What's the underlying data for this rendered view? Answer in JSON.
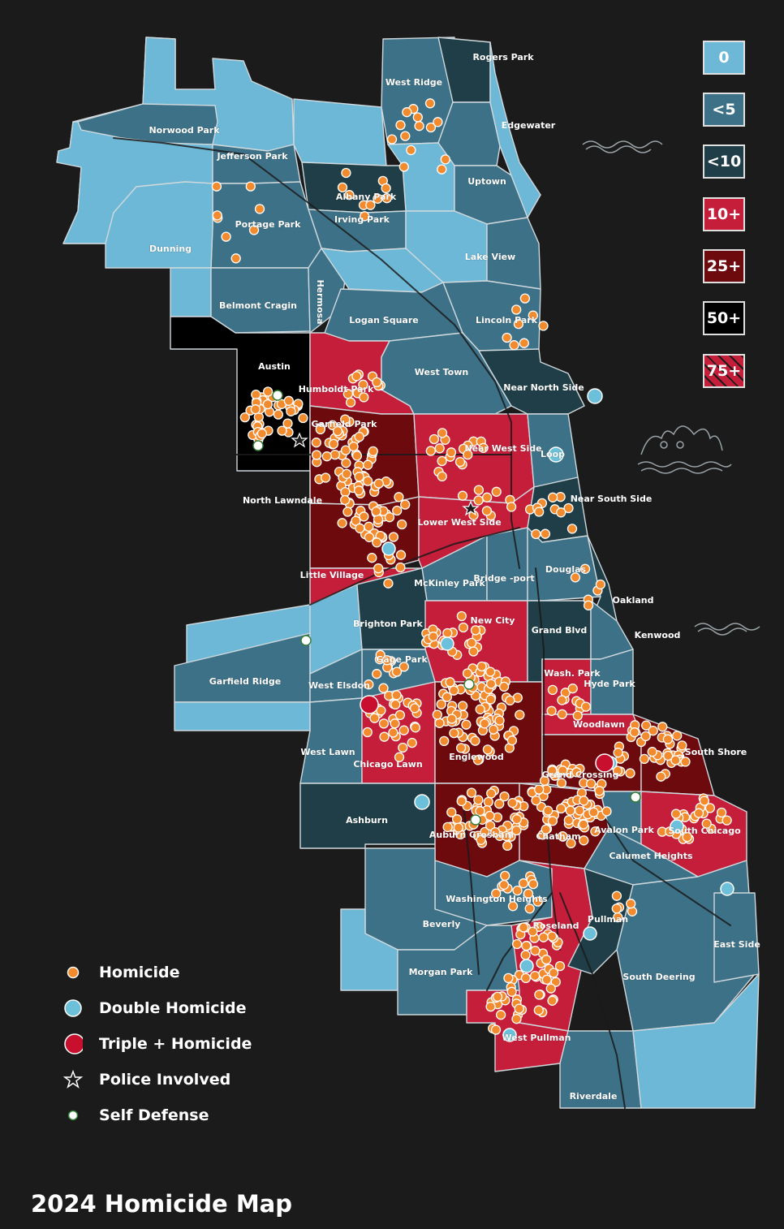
{
  "title": "2024 Homicide Map",
  "scale": [
    {
      "label": "0",
      "color": "#6cb8d6"
    },
    {
      "label": "<5",
      "color": "#3d7187"
    },
    {
      "label": "<10",
      "color": "#1f3e47"
    },
    {
      "label": "10+",
      "color": "#c41e3a"
    },
    {
      "label": "25+",
      "color": "#6d0a0e"
    },
    {
      "label": "50+",
      "color": "#000000"
    },
    {
      "label": "75+",
      "color": "#c41e3a"
    }
  ],
  "legend": [
    {
      "label": "Homicide",
      "icon": "orange-dot-icon"
    },
    {
      "label": "Double Homicide",
      "icon": "blue-dot-icon"
    },
    {
      "label": "Triple + Homicide",
      "icon": "red-dot-icon"
    },
    {
      "label": "Police Involved",
      "icon": "star-icon"
    },
    {
      "label": "Self Defense",
      "icon": "white-dot-icon"
    }
  ],
  "neighborhoods": {
    "rogers_park": "Rogers Park",
    "west_ridge": "West Ridge",
    "edgewater": "Edgewater",
    "norwood_park": "Norwood Park",
    "jefferson_park": "Jefferson Park",
    "albany_park": "Albany Park",
    "uptown": "Uptown",
    "irving_park": "Irving Park",
    "portage_park": "Portage Park",
    "dunning": "Dunning",
    "lake_view": "Lake View",
    "belmont_cragin": "Belmont Cragin",
    "hermosa": "Hermosa",
    "logan_square": "Logan Square",
    "lincoln_park": "Lincoln Park",
    "austin": "Austin",
    "humboldt_park": "Humboldt Park",
    "west_town": "West Town",
    "near_north_side": "Near North Side",
    "garfield_park": "Garfield Park",
    "near_west_side": "Near West Side",
    "loop": "Loop",
    "north_lawndale": "North Lawndale",
    "lower_west_side": "Lower West Side",
    "near_south_side": "Near South Side",
    "little_village": "Little Village",
    "mckinley_park": "McKinley Park",
    "bridgeport": "Bridge -port",
    "douglas": "Douglas",
    "oakland": "Oakland",
    "brighton_park": "Brighton Park",
    "new_city": "New City",
    "grand_blvd": "Grand Blvd",
    "kenwood": "Kenwood",
    "garfield_ridge": "Garfield Ridge",
    "gage_park": "Gage Park",
    "west_elsdon": "West Elsdon",
    "wash_park": "Wash. Park",
    "hyde_park": "Hyde Park",
    "woodlawn": "Woodlawn",
    "west_lawn": "West Lawn",
    "chicago_lawn": "Chicago Lawn",
    "englewood": "Englewood",
    "grand_crossing": "Grand Crossing",
    "south_shore": "South Shore",
    "ashburn": "Ashburn",
    "auburn_gresham": "Auburn Gresham",
    "chatham": "Chatham",
    "avalon_park": "Avalon Park",
    "south_chicago": "South Chicago",
    "calumet_heights": "Calumet Heights",
    "washington_heights": "Washington Heights",
    "beverly": "Beverly",
    "roseland": "Roseland",
    "pullman": "Pullman",
    "east_side": "East Side",
    "morgan_park": "Morgan Park",
    "south_deering": "South Deering",
    "west_pullman": "West Pullman",
    "riverdale": "Riverdale"
  }
}
